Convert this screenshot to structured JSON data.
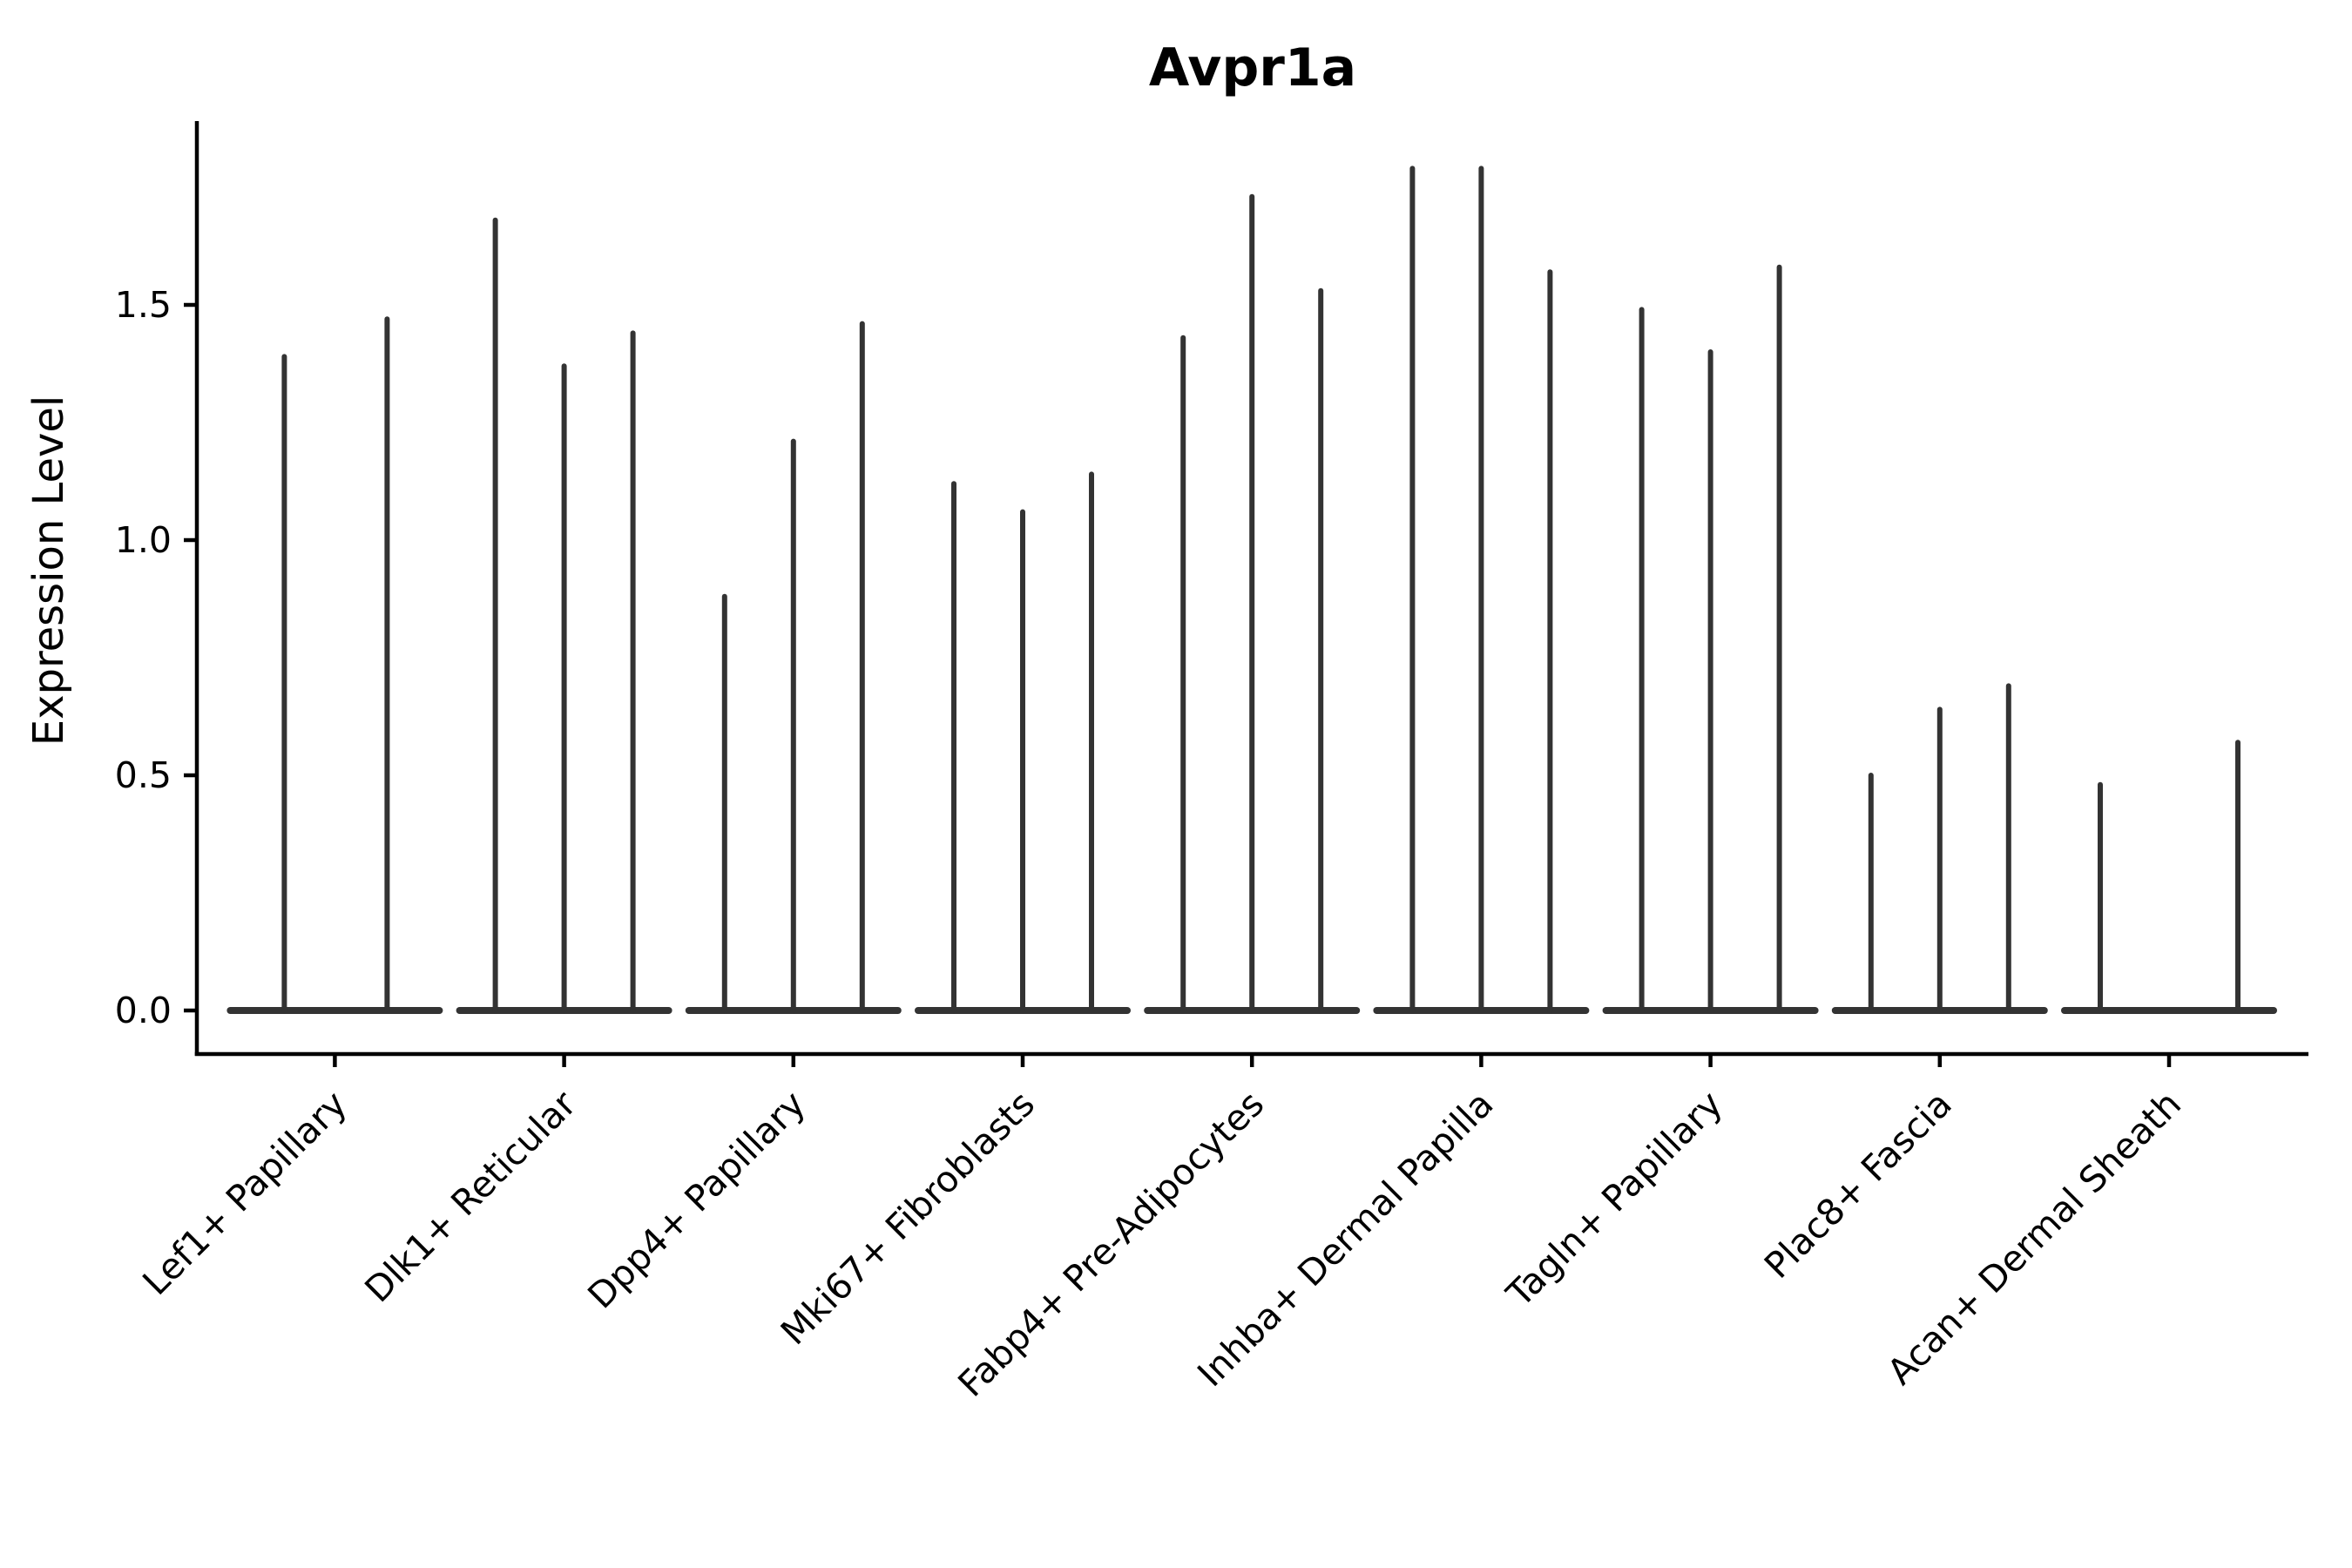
{
  "figure": {
    "background": "#ffffff"
  },
  "chart_data": {
    "type": "violin",
    "title": "Avpr1a",
    "ylabel": "Expression Level",
    "xlabel": "",
    "ytick_labels": [
      "0.0",
      "0.5",
      "1.0",
      "1.5"
    ],
    "ytick_values": [
      0.0,
      0.5,
      1.0,
      1.5
    ],
    "ylim": [
      -0.09,
      1.89
    ],
    "grid": false,
    "legend": "none",
    "violin_color": "#333333",
    "axis_color": "#000000",
    "categories": [
      "Lef1+ Papillary",
      "Dlk1+ Reticular",
      "Dpp4+ Papillary",
      "Mki67+ Fibroblasts",
      "Fabp4+ Pre-Adipocytes",
      "Inhba+ Dermal Papilla",
      "Tagln+ Papillary",
      "Plac8+ Fascia",
      "Acan+ Dermal Sheath"
    ],
    "groups": [
      {
        "category": "Lef1+ Papillary",
        "violin_max_expression": [
          1.39,
          1.47
        ]
      },
      {
        "category": "Dlk1+ Reticular",
        "violin_max_expression": [
          1.68,
          1.37,
          1.44
        ]
      },
      {
        "category": "Dpp4+ Papillary",
        "violin_max_expression": [
          0.88,
          1.21,
          1.46
        ]
      },
      {
        "category": "Mki67+ Fibroblasts",
        "violin_max_expression": [
          1.12,
          1.06,
          1.14
        ]
      },
      {
        "category": "Fabp4+ Pre-Adipocytes",
        "violin_max_expression": [
          1.43,
          1.73,
          1.53
        ]
      },
      {
        "category": "Inhba+ Dermal Papilla",
        "violin_max_expression": [
          1.79,
          1.79,
          1.57
        ]
      },
      {
        "category": "Tagln+ Papillary",
        "violin_max_expression": [
          1.49,
          1.4,
          1.58
        ]
      },
      {
        "category": "Plac8+ Fascia",
        "violin_max_expression": [
          0.5,
          0.64,
          0.69
        ]
      },
      {
        "category": "Acan+ Dermal Sheath",
        "violin_max_expression": [
          0.48,
          0.0,
          0.57
        ]
      }
    ],
    "note": "Each violin is collapsed to a thin vertical spike: expression mass is concentrated at 0, with rare cells reaching the listed maximum expression value."
  }
}
